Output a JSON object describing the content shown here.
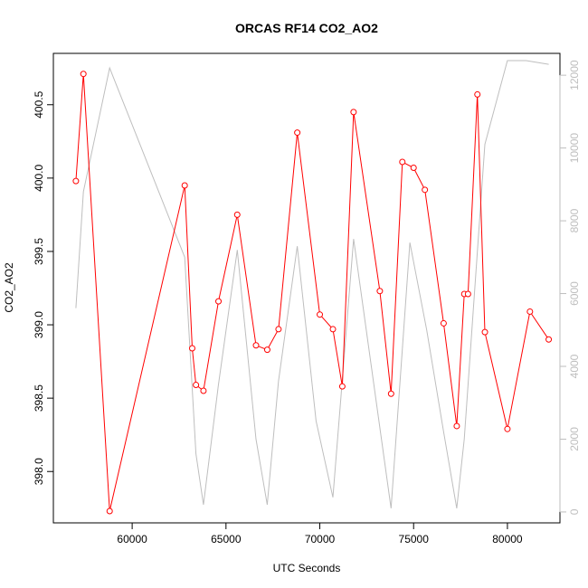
{
  "chart_data": {
    "type": "line",
    "title": "ORCAS RF14 CO2_AO2",
    "xlabel": "UTC Seconds",
    "ylabel": "CO2_AO2",
    "y2label": "",
    "xlim": [
      55800,
      82800
    ],
    "ylim": [
      397.65,
      400.85
    ],
    "y2lim": [
      -300,
      12600
    ],
    "x_ticks": [
      60000,
      65000,
      70000,
      75000,
      80000
    ],
    "y_ticks": [
      398.0,
      398.5,
      399.0,
      399.5,
      400.0,
      400.5
    ],
    "y2_ticks": [
      0,
      2000,
      4000,
      6000,
      8000,
      10000,
      12000
    ],
    "grid": false,
    "series": [
      {
        "color": "#ff0000",
        "marker": "open-circle",
        "axis": "left",
        "x": [
          57000,
          57400,
          58800,
          62800,
          63200,
          63400,
          63800,
          64600,
          65600,
          66600,
          67200,
          67800,
          68800,
          70000,
          70700,
          71200,
          71800,
          73200,
          73800,
          74400,
          75000,
          75600,
          76600,
          77300,
          77700,
          77900,
          78400,
          78800,
          80000,
          81200,
          82200
        ],
        "y": [
          399.98,
          400.71,
          397.73,
          399.95,
          398.84,
          398.59,
          398.55,
          399.16,
          399.75,
          398.86,
          398.83,
          398.97,
          400.31,
          399.07,
          398.97,
          398.58,
          400.45,
          399.23,
          398.53,
          400.11,
          400.07,
          399.92,
          399.01,
          398.31,
          399.21,
          399.21,
          400.57,
          398.95,
          398.29,
          399.09,
          398.9
        ]
      },
      {
        "color": "#bebebe",
        "marker": "none",
        "axis": "right",
        "x": [
          57000,
          57400,
          58800,
          62800,
          63400,
          63800,
          64600,
          65600,
          66600,
          67200,
          67800,
          68800,
          69800,
          70700,
          71800,
          73800,
          74800,
          75700,
          76600,
          77300,
          77700,
          78800,
          80000,
          81000,
          82200
        ],
        "y": [
          5600,
          8800,
          12200,
          7000,
          1600,
          200,
          3500,
          7200,
          2000,
          200,
          3600,
          7300,
          2500,
          400,
          7500,
          100,
          7400,
          5000,
          2200,
          100,
          2000,
          10100,
          12400,
          12400,
          12300
        ]
      }
    ]
  }
}
